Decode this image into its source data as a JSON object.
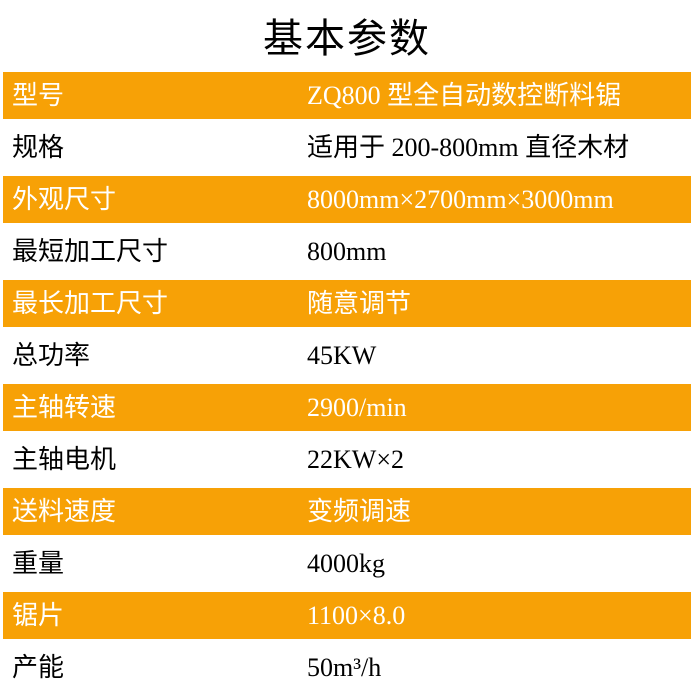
{
  "title": "基本参数",
  "colors": {
    "accent": "#F7A106",
    "highlight_text": "#FFFFFF",
    "text": "#000000",
    "background": "#FFFFFF"
  },
  "table": {
    "rows": [
      {
        "label": "型号",
        "value": "ZQ800 型全自动数控断料锯",
        "highlight": true
      },
      {
        "label": "规格",
        "value": "适用于 200-800mm 直径木材",
        "highlight": false
      },
      {
        "label": "外观尺寸",
        "value": "8000mm×2700mm×3000mm",
        "highlight": true
      },
      {
        "label": "最短加工尺寸",
        "value": "800mm",
        "highlight": false
      },
      {
        "label": "最长加工尺寸",
        "value": "随意调节",
        "highlight": true
      },
      {
        "label": "总功率",
        "value": "45KW",
        "highlight": false
      },
      {
        "label": "主轴转速",
        "value": "2900/min",
        "highlight": true
      },
      {
        "label": "主轴电机",
        "value": "22KW×2",
        "highlight": false
      },
      {
        "label": "送料速度",
        "value": "变频调速",
        "highlight": true
      },
      {
        "label": "重量",
        "value": "4000kg",
        "highlight": false
      },
      {
        "label": "锯片",
        "value": "1100×8.0",
        "highlight": true
      },
      {
        "label": "产能",
        "value": "50m³/h",
        "highlight": false
      }
    ]
  }
}
